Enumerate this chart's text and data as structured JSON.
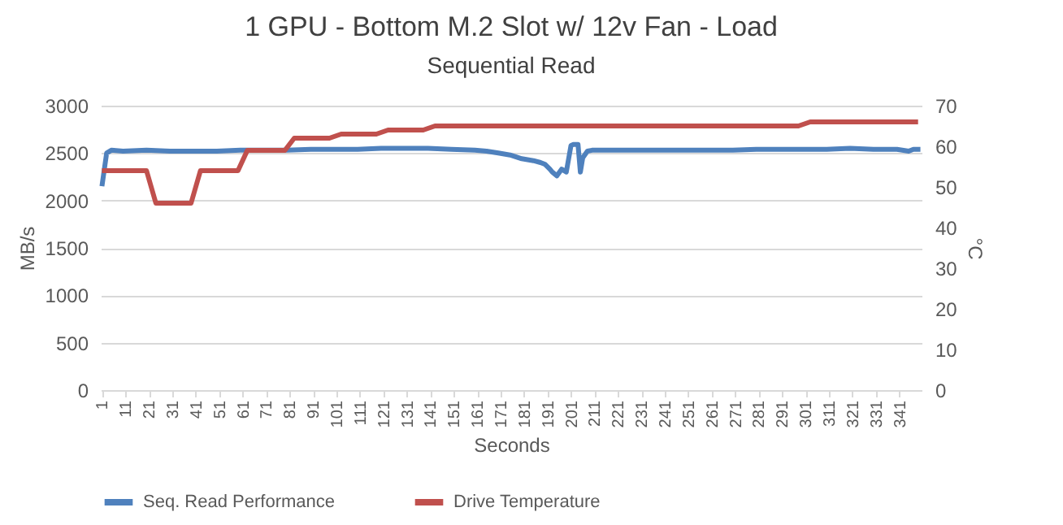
{
  "chart_data": {
    "type": "line",
    "title": "1 GPU - Bottom M.2 Slot w/ 12v Fan  - Load",
    "subtitle": "Sequential Read",
    "xlabel": "Seconds",
    "ylabel": "MB/s",
    "y2label": "°C",
    "xlim": [
      0.5,
      350.5
    ],
    "xticks": [
      1,
      11,
      21,
      31,
      41,
      51,
      61,
      71,
      81,
      91,
      101,
      111,
      121,
      131,
      141,
      151,
      161,
      171,
      181,
      191,
      201,
      211,
      221,
      231,
      241,
      251,
      261,
      271,
      281,
      291,
      301,
      311,
      321,
      331,
      341
    ],
    "ylim": [
      0,
      3000
    ],
    "yticks": [
      0,
      500,
      1000,
      1500,
      2000,
      2500,
      3000
    ],
    "y2lim": [
      0,
      70
    ],
    "y2ticks": [
      0,
      10,
      20,
      30,
      40,
      50,
      60,
      70
    ],
    "grid": "y",
    "legend": "bottom",
    "line_style": "solid",
    "marker": "none",
    "series": [
      {
        "name": "Seq. Read Performance",
        "color": "#4f81bd",
        "x": [
          1,
          3,
          5,
          10,
          20,
          30,
          40,
          50,
          60,
          80,
          90,
          100,
          110,
          120,
          130,
          140,
          150,
          160,
          165,
          170,
          175,
          180,
          185,
          188,
          190,
          192,
          193,
          195,
          197,
          199,
          201,
          202,
          204,
          205,
          206,
          208,
          210,
          220,
          230,
          240,
          250,
          260,
          270,
          280,
          290,
          300,
          310,
          320,
          330,
          340,
          345,
          347,
          350
        ],
        "values": [
          2150,
          2500,
          2530,
          2520,
          2530,
          2520,
          2520,
          2520,
          2530,
          2530,
          2540,
          2540,
          2540,
          2550,
          2550,
          2550,
          2540,
          2530,
          2520,
          2500,
          2480,
          2440,
          2420,
          2400,
          2380,
          2330,
          2300,
          2260,
          2330,
          2300,
          2580,
          2590,
          2590,
          2300,
          2450,
          2520,
          2530,
          2530,
          2530,
          2530,
          2530,
          2530,
          2530,
          2540,
          2540,
          2540,
          2540,
          2550,
          2540,
          2540,
          2520,
          2540,
          2540
        ]
      },
      {
        "name": "Drive Temperature",
        "color": "#c0504d",
        "axis": "y2",
        "x": [
          1,
          20,
          24,
          39,
          43,
          59,
          63,
          79,
          83,
          98,
          103,
          118,
          123,
          138,
          143,
          298,
          303,
          349
        ],
        "values": [
          54,
          54,
          46,
          46,
          54,
          54,
          59,
          59,
          62,
          62,
          63,
          63,
          64,
          64,
          65,
          65,
          66,
          66
        ]
      }
    ]
  }
}
